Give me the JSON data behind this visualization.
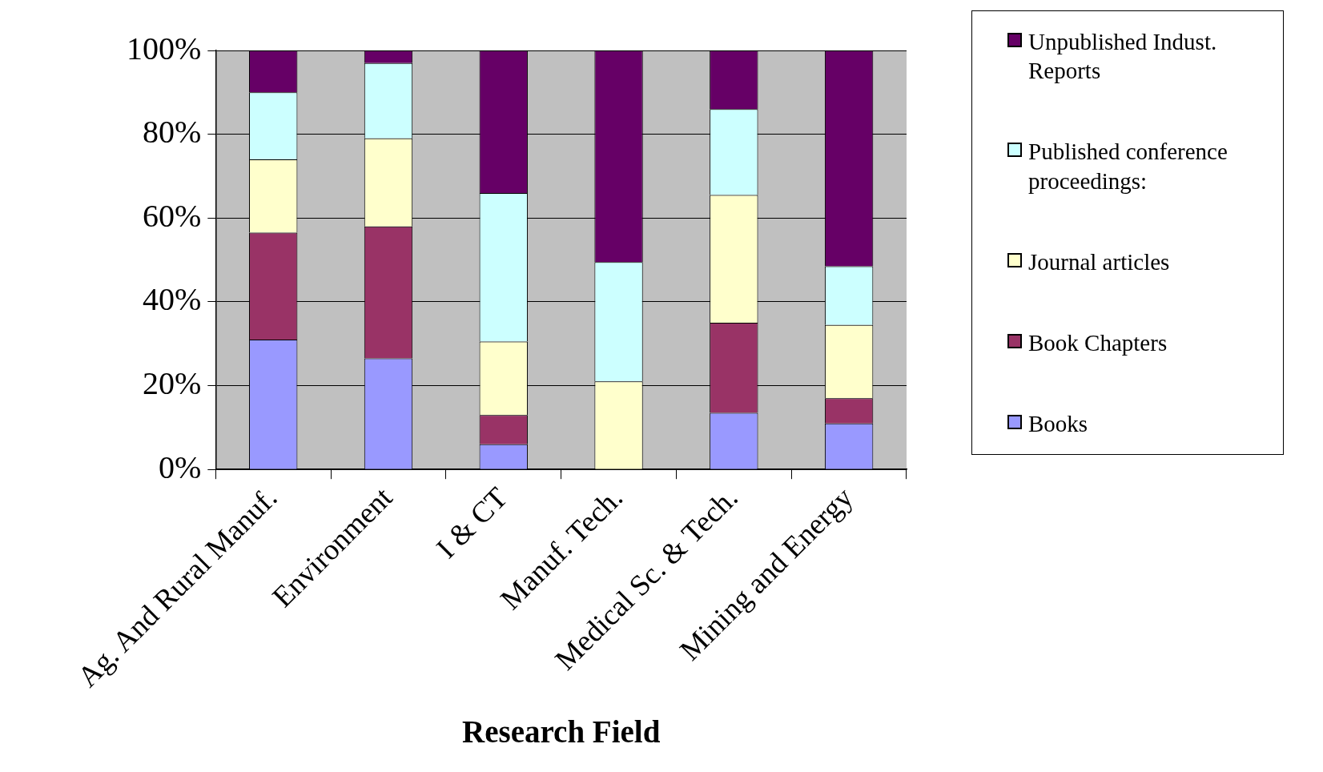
{
  "chart_data": {
    "type": "bar",
    "stacked": true,
    "xlabel": "Research Field",
    "categories": [
      "Ag. And Rural Manuf.",
      "Environment",
      "I & CT",
      "Manuf. Tech.",
      "Medical Sc. & Tech.",
      "Mining and Energy"
    ],
    "series": [
      {
        "name": "Books",
        "color": "#9999ff",
        "values": [
          31,
          26.5,
          6,
          0,
          13.5,
          11
        ]
      },
      {
        "name": "Book Chapters",
        "color": "#993366",
        "values": [
          25.5,
          31.5,
          7,
          0,
          21.5,
          6
        ]
      },
      {
        "name": "Journal articles",
        "color": "#ffffcc",
        "values": [
          17.5,
          21,
          17.5,
          21,
          30.5,
          17.5
        ]
      },
      {
        "name": "Published conference proceedings:",
        "color": "#ccffff",
        "values": [
          16,
          18,
          35.5,
          28.5,
          20.5,
          14
        ]
      },
      {
        "name": "Unpublished Indust. Reports",
        "color": "#660066",
        "values": [
          10,
          3,
          34,
          50.5,
          14,
          51.5
        ]
      }
    ],
    "ylim": [
      0,
      100
    ],
    "yticks": [
      {
        "value": 0,
        "label": "0%"
      },
      {
        "value": 20,
        "label": "20%"
      },
      {
        "value": 40,
        "label": "40%"
      },
      {
        "value": 60,
        "label": "60%"
      },
      {
        "value": 80,
        "label": "80%"
      },
      {
        "value": 100,
        "label": "100%"
      }
    ],
    "grid": "y",
    "legend": "right"
  }
}
